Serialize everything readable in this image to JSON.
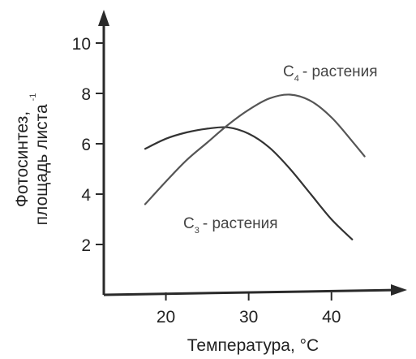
{
  "chart_data": {
    "type": "line",
    "title": "",
    "xlabel": "Температура, °C",
    "ylabel_line1": "Фотосинтез,",
    "ylabel_line2": "площадь листа",
    "ylabel_superscript": "-1",
    "xlim": [
      12.5,
      46
    ],
    "ylim": [
      0,
      11
    ],
    "xticks": [
      "20",
      "30",
      "40"
    ],
    "yticks": [
      "2",
      "4",
      "6",
      "8",
      "10"
    ],
    "xtick_values": [
      20,
      30,
      40
    ],
    "ytick_values": [
      2,
      4,
      6,
      8,
      10
    ],
    "series": [
      {
        "name": "C₃ - растения",
        "name_main": "C",
        "name_sub": "3",
        "name_rest": "- растения",
        "color": "#333333",
        "x": [
          17.5,
          20,
          22.5,
          25,
          27.5,
          30,
          32.5,
          35,
          37.5,
          40,
          42.5
        ],
        "y": [
          5.8,
          6.2,
          6.45,
          6.6,
          6.65,
          6.4,
          5.85,
          5.0,
          4.0,
          3.0,
          2.2
        ]
      },
      {
        "name": "C₄ - растения",
        "name_main": "C",
        "name_sub": "4",
        "name_rest": "- растения",
        "color": "#555555",
        "x": [
          17.5,
          20,
          22.5,
          25,
          27.5,
          30,
          32.5,
          35,
          37.5,
          40,
          42.5,
          44
        ],
        "y": [
          3.6,
          4.5,
          5.35,
          6.05,
          6.75,
          7.35,
          7.8,
          7.95,
          7.7,
          7.05,
          6.1,
          5.5
        ]
      }
    ]
  }
}
